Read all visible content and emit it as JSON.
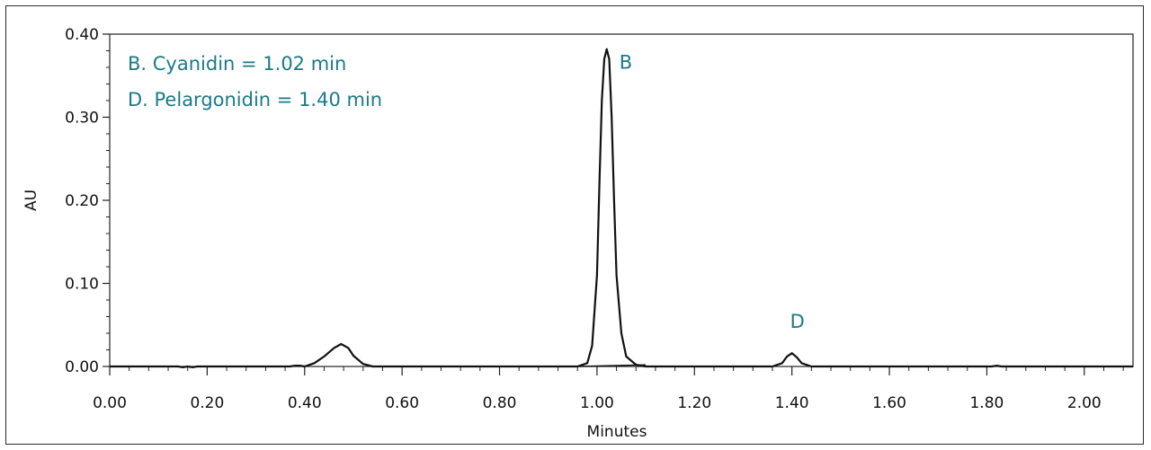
{
  "chart_data": {
    "type": "line",
    "title": "",
    "xlabel": "Minutes",
    "ylabel": "AU",
    "xlim": [
      0.0,
      2.1
    ],
    "ylim": [
      0.0,
      0.4
    ],
    "x_ticks": [
      "0.00",
      "0.20",
      "0.40",
      "0.60",
      "0.80",
      "1.00",
      "1.20",
      "1.40",
      "1.60",
      "1.80",
      "2.00"
    ],
    "y_ticks": [
      "0.00",
      "0.10",
      "0.20",
      "0.30",
      "0.40"
    ],
    "annotations": [
      "B. Cyanidin = 1.02 min",
      "D. Pelargonidin = 1.40 min"
    ],
    "peaks": [
      {
        "label": "B",
        "x": 1.02,
        "y": 0.382
      },
      {
        "label": "D",
        "x": 1.4,
        "y": 0.016
      }
    ],
    "series": [
      {
        "x": [
          0.0,
          0.14,
          0.15,
          0.16,
          0.17,
          0.18,
          0.37,
          0.38,
          0.39,
          0.4,
          0.42,
          0.44,
          0.46,
          0.475,
          0.49,
          0.5,
          0.52,
          0.54,
          0.96,
          0.98,
          0.99,
          1.0,
          1.005,
          1.01,
          1.015,
          1.02,
          1.025,
          1.03,
          1.035,
          1.04,
          1.05,
          1.06,
          1.08,
          1.1,
          1.36,
          1.38,
          1.39,
          1.4,
          1.41,
          1.42,
          1.44,
          1.81,
          1.82,
          1.83,
          2.1
        ],
        "y": [
          0.0,
          0.0,
          -0.001,
          0.0,
          -0.001,
          0.0,
          0.0,
          0.001,
          0.001,
          0.0,
          0.004,
          0.012,
          0.022,
          0.027,
          0.022,
          0.013,
          0.003,
          0.0,
          0.0,
          0.004,
          0.025,
          0.11,
          0.22,
          0.32,
          0.37,
          0.382,
          0.37,
          0.3,
          0.2,
          0.11,
          0.04,
          0.012,
          0.002,
          0.0,
          0.0,
          0.004,
          0.012,
          0.016,
          0.011,
          0.004,
          0.0,
          0.0,
          0.001,
          0.0,
          0.0
        ]
      }
    ],
    "colors": {
      "line": "#111111",
      "annotation": "#1a7a85"
    },
    "grid": false
  }
}
